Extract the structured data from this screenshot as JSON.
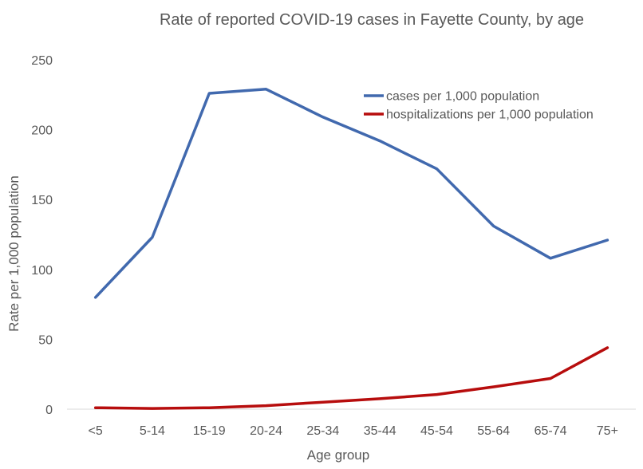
{
  "chart_data": {
    "type": "line",
    "title": "Rate of reported COVID-19 cases in Fayette County, by age",
    "xlabel": "Age group",
    "ylabel": "Rate per 1,000 population",
    "categories": [
      "<5",
      "5-14",
      "15-19",
      "20-24",
      "25-34",
      "35-44",
      "45-54",
      "55-64",
      "65-74",
      "75+"
    ],
    "ylim": [
      0,
      250
    ],
    "yticks": [
      0,
      50,
      100,
      150,
      200,
      250
    ],
    "grid": false,
    "legend_position": "top-right",
    "series": [
      {
        "name": "cases per 1,000 population",
        "color": "#4169AE",
        "values": [
          80,
          123,
          226,
          229,
          209,
          192,
          172,
          131,
          108,
          121
        ]
      },
      {
        "name": "hospitalizations per 1,000 population",
        "color": "#B70D0D",
        "values": [
          1,
          0.5,
          1,
          2.5,
          5,
          7.5,
          10.5,
          16,
          22,
          44
        ]
      }
    ]
  }
}
